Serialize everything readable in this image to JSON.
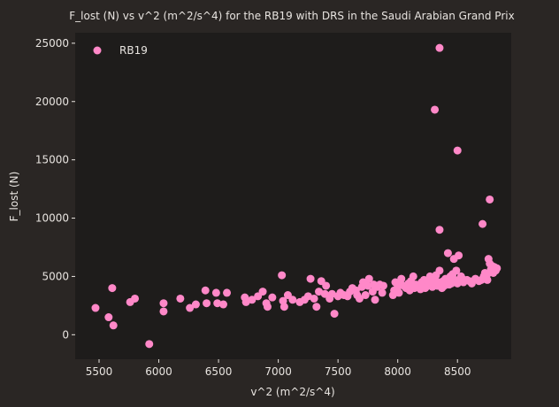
{
  "colors": {
    "figure_bg": "#2a2624",
    "axes_bg": "#1e1c1b",
    "text": "#e8e4e0",
    "point": "#ff88c8"
  },
  "chart_data": {
    "type": "scatter",
    "title": "F_lost (N) vs v^2 (m^2/s^4) for the RB19 with DRS in the Saudi Arabian Grand Prix",
    "xlabel": "v^2 (m^2/s^4)",
    "ylabel": "F_lost (N)",
    "xlim": [
      5300,
      8950
    ],
    "ylim": [
      -2100,
      25900
    ],
    "xticks": [
      5500,
      6000,
      6500,
      7000,
      7500,
      8000,
      8500
    ],
    "yticks": [
      0,
      5000,
      10000,
      15000,
      20000,
      25000
    ],
    "grid": false,
    "legend_position": "top-left",
    "series": [
      {
        "name": "RB19",
        "color": "#ff88c8",
        "points": [
          [
            5470,
            2300
          ],
          [
            5580,
            1500
          ],
          [
            5610,
            4000
          ],
          [
            5620,
            800
          ],
          [
            5760,
            2800
          ],
          [
            5800,
            3100
          ],
          [
            5920,
            -800
          ],
          [
            6040,
            2700
          ],
          [
            6040,
            2000
          ],
          [
            6180,
            3100
          ],
          [
            6260,
            2300
          ],
          [
            6310,
            2600
          ],
          [
            6390,
            3800
          ],
          [
            6400,
            2700
          ],
          [
            6480,
            3600
          ],
          [
            6490,
            2700
          ],
          [
            6540,
            2600
          ],
          [
            6570,
            3600
          ],
          [
            6720,
            3200
          ],
          [
            6730,
            2800
          ],
          [
            6780,
            3000
          ],
          [
            6830,
            3300
          ],
          [
            6870,
            3700
          ],
          [
            6900,
            2700
          ],
          [
            6910,
            2400
          ],
          [
            6950,
            3200
          ],
          [
            7030,
            5100
          ],
          [
            7040,
            2900
          ],
          [
            7050,
            2400
          ],
          [
            7080,
            3400
          ],
          [
            7120,
            3000
          ],
          [
            7180,
            2800
          ],
          [
            7220,
            3000
          ],
          [
            7250,
            3300
          ],
          [
            7270,
            4800
          ],
          [
            7300,
            3100
          ],
          [
            7320,
            2400
          ],
          [
            7340,
            3700
          ],
          [
            7360,
            4600
          ],
          [
            7390,
            3500
          ],
          [
            7400,
            4200
          ],
          [
            7430,
            3100
          ],
          [
            7450,
            3500
          ],
          [
            7470,
            1800
          ],
          [
            7500,
            3300
          ],
          [
            7520,
            3600
          ],
          [
            7550,
            3400
          ],
          [
            7580,
            3300
          ],
          [
            7600,
            3700
          ],
          [
            7620,
            4000
          ],
          [
            7650,
            3800
          ],
          [
            7660,
            3400
          ],
          [
            7680,
            3100
          ],
          [
            7700,
            4100
          ],
          [
            7710,
            4500
          ],
          [
            7730,
            3400
          ],
          [
            7750,
            4200
          ],
          [
            7760,
            4800
          ],
          [
            7790,
            3700
          ],
          [
            7800,
            4300
          ],
          [
            7810,
            3000
          ],
          [
            7830,
            4100
          ],
          [
            7850,
            4300
          ],
          [
            7870,
            3600
          ],
          [
            7880,
            4200
          ],
          [
            7960,
            3400
          ],
          [
            7970,
            3800
          ],
          [
            7980,
            4500
          ],
          [
            8000,
            4100
          ],
          [
            8010,
            3600
          ],
          [
            8020,
            4300
          ],
          [
            8030,
            4800
          ],
          [
            8050,
            4200
          ],
          [
            8070,
            4000
          ],
          [
            8090,
            4400
          ],
          [
            8100,
            3800
          ],
          [
            8110,
            4600
          ],
          [
            8120,
            4200
          ],
          [
            8130,
            5000
          ],
          [
            8140,
            4000
          ],
          [
            8150,
            4300
          ],
          [
            8170,
            4100
          ],
          [
            8190,
            3900
          ],
          [
            8200,
            4500
          ],
          [
            8210,
            4300
          ],
          [
            8220,
            4700
          ],
          [
            8230,
            4000
          ],
          [
            8240,
            4400
          ],
          [
            8250,
            4200
          ],
          [
            8260,
            4600
          ],
          [
            8270,
            5000
          ],
          [
            8280,
            4300
          ],
          [
            8290,
            4100
          ],
          [
            8300,
            4800
          ],
          [
            8310,
            4300
          ],
          [
            8320,
            5100
          ],
          [
            8330,
            4200
          ],
          [
            8340,
            4500
          ],
          [
            8350,
            5500
          ],
          [
            8360,
            4400
          ],
          [
            8370,
            4000
          ],
          [
            8380,
            4600
          ],
          [
            8390,
            4200
          ],
          [
            8400,
            4800
          ],
          [
            8410,
            4500
          ],
          [
            8420,
            7000
          ],
          [
            8430,
            4300
          ],
          [
            8440,
            5000
          ],
          [
            8450,
            4400
          ],
          [
            8460,
            5200
          ],
          [
            8470,
            6500
          ],
          [
            8480,
            4700
          ],
          [
            8490,
            5500
          ],
          [
            8500,
            4400
          ],
          [
            8510,
            6800
          ],
          [
            8520,
            4600
          ],
          [
            8530,
            5000
          ],
          [
            8540,
            4800
          ],
          [
            8550,
            4500
          ],
          [
            8580,
            4700
          ],
          [
            8600,
            4600
          ],
          [
            8620,
            4400
          ],
          [
            8650,
            4800
          ],
          [
            8680,
            4600
          ],
          [
            8700,
            4700
          ],
          [
            8720,
            5000
          ],
          [
            8730,
            5300
          ],
          [
            8740,
            4900
          ],
          [
            8750,
            5200
          ],
          [
            8760,
            6500
          ],
          [
            8770,
            6100
          ],
          [
            8780,
            5600
          ],
          [
            8790,
            5900
          ],
          [
            8800,
            5300
          ],
          [
            8810,
            5800
          ],
          [
            8820,
            5500
          ],
          [
            8830,
            5700
          ],
          [
            8750,
            4700
          ],
          [
            8710,
            9500
          ],
          [
            8770,
            11600
          ],
          [
            8350,
            9000
          ],
          [
            8500,
            15800
          ],
          [
            8310,
            19300
          ],
          [
            8350,
            24600
          ]
        ]
      }
    ]
  }
}
